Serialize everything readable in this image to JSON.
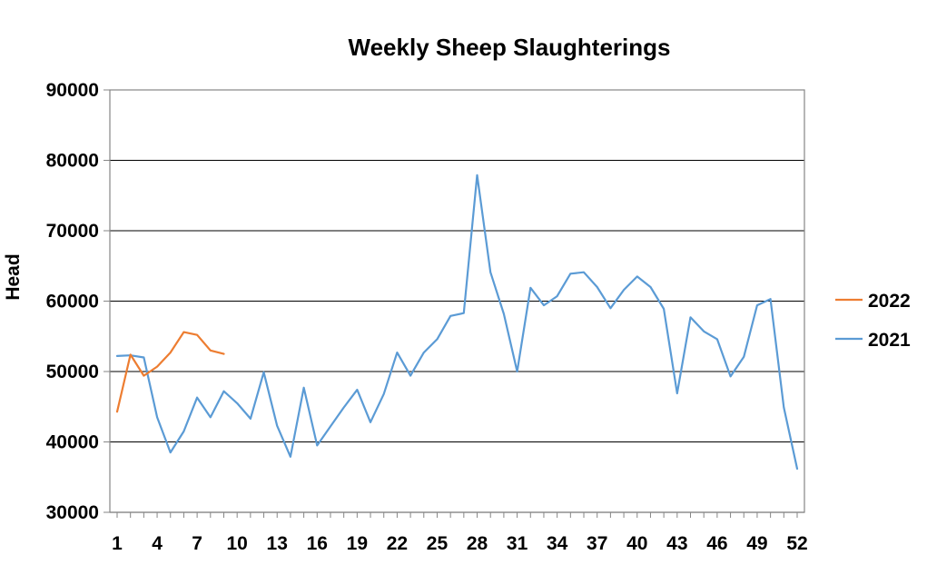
{
  "chart_data": {
    "type": "line",
    "title": "Weekly Sheep Slaughterings",
    "xlabel": "",
    "ylabel": "Head",
    "ylim": [
      30000,
      90000
    ],
    "yticks": [
      30000,
      40000,
      50000,
      60000,
      70000,
      80000,
      90000
    ],
    "xlim": [
      1,
      52
    ],
    "xticks": [
      1,
      4,
      7,
      10,
      13,
      16,
      19,
      22,
      25,
      28,
      31,
      34,
      37,
      40,
      43,
      46,
      49,
      52
    ],
    "grid": "horizontal",
    "legend_position": "right",
    "series": [
      {
        "name": "2022",
        "color": "#ED7D31",
        "x": [
          1,
          2,
          3,
          4,
          5,
          6,
          7,
          8,
          9
        ],
        "values": [
          44300,
          52400,
          49400,
          50700,
          52700,
          55600,
          55200,
          53000,
          52500
        ]
      },
      {
        "name": "2021",
        "color": "#5B9BD5",
        "x": [
          1,
          2,
          3,
          4,
          5,
          6,
          7,
          8,
          9,
          10,
          11,
          12,
          13,
          14,
          15,
          16,
          17,
          18,
          19,
          20,
          21,
          22,
          23,
          24,
          25,
          26,
          27,
          28,
          29,
          30,
          31,
          32,
          33,
          34,
          35,
          36,
          37,
          38,
          39,
          40,
          41,
          42,
          43,
          44,
          45,
          46,
          47,
          48,
          49,
          50,
          51,
          52
        ],
        "values": [
          52200,
          52300,
          52000,
          43500,
          38500,
          41500,
          46300,
          43500,
          47200,
          45500,
          43300,
          49900,
          42300,
          37900,
          47700,
          39500,
          42200,
          44900,
          47400,
          42800,
          46800,
          52700,
          49400,
          52700,
          54600,
          57900,
          58300,
          77900,
          64100,
          58200,
          50000,
          61900,
          59400,
          60700,
          63900,
          64100,
          62000,
          59000,
          61600,
          63500,
          62000,
          58900,
          46900,
          57700,
          55700,
          54600,
          49300,
          52100,
          59400,
          60300,
          44900,
          36200
        ]
      }
    ]
  }
}
